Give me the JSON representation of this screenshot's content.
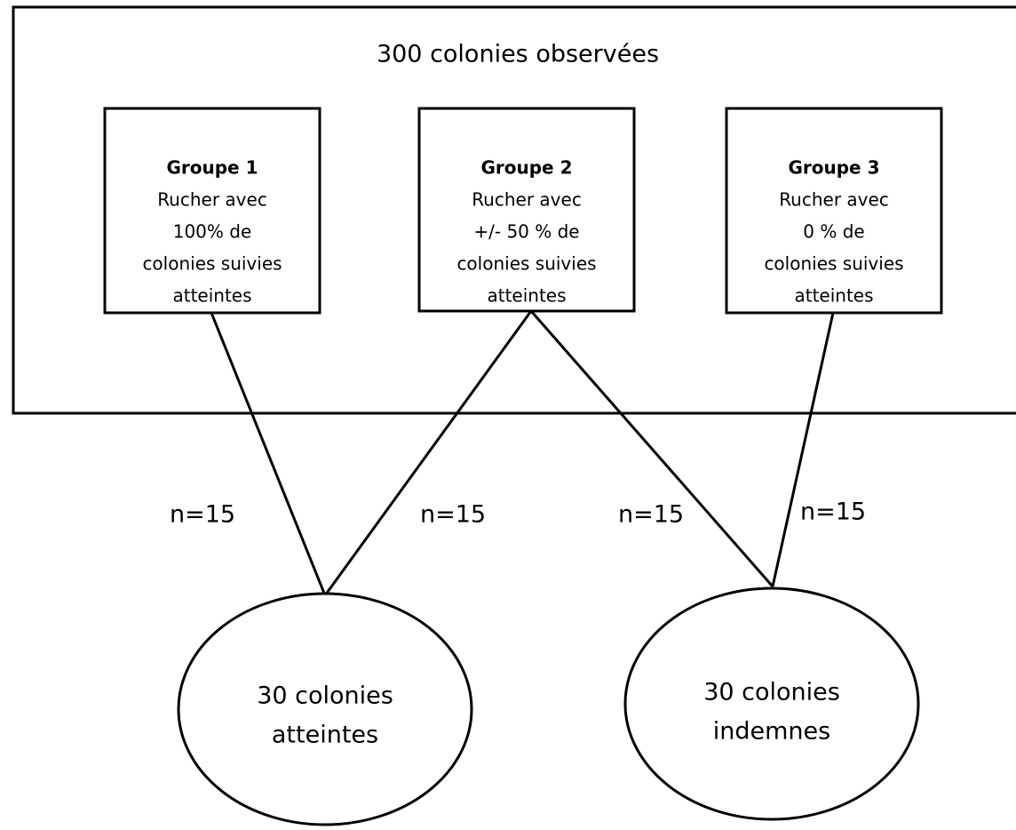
{
  "title": "300 colonies observées",
  "groups": [
    {
      "title": "Groupe 1",
      "lines": [
        "Rucher avec",
        "100% de",
        "colonies suivies",
        "atteintes"
      ]
    },
    {
      "title": "Groupe 2",
      "lines": [
        "Rucher avec",
        "+/-  50 % de",
        "colonies suivies",
        "atteintes"
      ]
    },
    {
      "title": "Groupe 3",
      "lines": [
        "Rucher avec",
        "0 %  de",
        "colonies suivies",
        "atteintes"
      ]
    }
  ],
  "links": [
    "n=15",
    "n=15",
    "n=15",
    "n=15"
  ],
  "outcomes": [
    {
      "lines": [
        "30 colonies",
        "atteintes"
      ]
    },
    {
      "lines": [
        "30 colonies",
        "indemnes"
      ]
    }
  ]
}
